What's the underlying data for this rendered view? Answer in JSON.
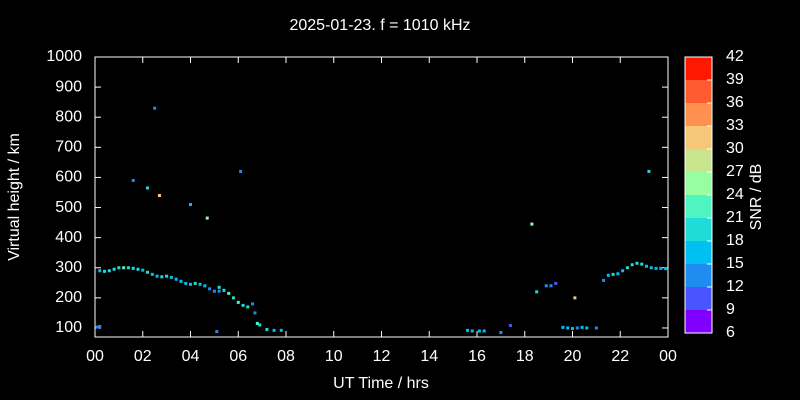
{
  "chart_data": {
    "type": "scatter",
    "title": "2025-01-23. f = 1010 kHz",
    "xlabel": "UT Time / hrs",
    "ylabel": "Virtual height / km",
    "xlim": [
      0,
      24
    ],
    "xticks": [
      {
        "value": 0,
        "label": "00"
      },
      {
        "value": 2,
        "label": "02"
      },
      {
        "value": 4,
        "label": "04"
      },
      {
        "value": 6,
        "label": "06"
      },
      {
        "value": 8,
        "label": "08"
      },
      10,
      12,
      14,
      16,
      18,
      20,
      22,
      {
        "value": 24,
        "label": "00"
      }
    ],
    "ylim": [
      70,
      1000
    ],
    "yticks": [
      100,
      200,
      300,
      400,
      500,
      600,
      700,
      800,
      900,
      1000
    ],
    "x": [
      0.1,
      0.2,
      0.2,
      0.4,
      0.6,
      0.8,
      1.0,
      1.2,
      1.4,
      1.6,
      1.8,
      2.0,
      2.2,
      2.4,
      2.6,
      2.8,
      3.0,
      3.2,
      3.4,
      3.6,
      3.8,
      4.0,
      4.2,
      4.4,
      4.6,
      4.8,
      5.0,
      5.2,
      5.4,
      5.6,
      5.8,
      6.0,
      6.2,
      6.4,
      6.6,
      6.7,
      6.8,
      6.9,
      7.2,
      7.5,
      7.8,
      1.6,
      2.5,
      2.7,
      2.2,
      4.0,
      4.7,
      6.1,
      5.1,
      5.2,
      15.6,
      15.8,
      16.1,
      16.3,
      17.0,
      17.4,
      18.3,
      18.5,
      18.9,
      19.1,
      19.3,
      20.1,
      19.6,
      19.8,
      20.0,
      20.2,
      20.4,
      20.6,
      21.0,
      21.3,
      21.5,
      21.7,
      21.9,
      22.1,
      22.3,
      22.5,
      22.7,
      22.9,
      23.1,
      23.3,
      23.5,
      23.7,
      23.9,
      23.2
    ],
    "values": [
      103,
      105,
      290,
      288,
      290,
      295,
      300,
      300,
      300,
      298,
      295,
      292,
      285,
      278,
      272,
      270,
      272,
      268,
      262,
      255,
      248,
      245,
      248,
      245,
      240,
      230,
      222,
      235,
      225,
      215,
      200,
      185,
      175,
      170,
      180,
      150,
      115,
      110,
      95,
      92,
      92,
      590,
      830,
      540,
      565,
      510,
      465,
      620,
      88,
      222,
      92,
      90,
      90,
      90,
      85,
      108,
      445,
      220,
      240,
      240,
      248,
      200,
      102,
      100,
      98,
      100,
      102,
      100,
      100,
      258,
      275,
      278,
      280,
      290,
      300,
      310,
      315,
      312,
      305,
      300,
      298,
      298,
      297,
      620
    ],
    "snr": [
      14,
      13,
      17,
      19,
      18,
      20,
      19,
      21,
      20,
      18,
      19,
      17,
      18,
      16,
      17,
      19,
      18,
      17,
      16,
      15,
      16,
      17,
      18,
      16,
      15,
      14,
      13,
      18,
      19,
      21,
      20,
      22,
      19,
      18,
      14,
      13,
      22,
      20,
      18,
      16,
      15,
      13,
      13,
      30,
      18,
      17,
      24,
      12,
      12,
      13,
      17,
      16,
      17,
      15,
      12,
      11,
      24,
      19,
      14,
      13,
      11,
      30,
      17,
      15,
      16,
      14,
      16,
      15,
      14,
      14,
      17,
      18,
      16,
      17,
      18,
      20,
      19,
      18,
      17,
      16,
      15,
      17,
      16,
      18
    ],
    "colorbar": {
      "label": "SNR / dB",
      "lim": [
        6,
        42
      ],
      "ticks": [
        6,
        9,
        12,
        15,
        18,
        21,
        24,
        27,
        30,
        33,
        36,
        39,
        42
      ],
      "colors": [
        "#8000ff",
        "#4a55ff",
        "#1f8cf2",
        "#00c0f2",
        "#20dcd8",
        "#50f4c0",
        "#98ffa0",
        "#c8e48c",
        "#f4c878",
        "#ff9050",
        "#ff5a30",
        "#ff1800"
      ]
    }
  }
}
